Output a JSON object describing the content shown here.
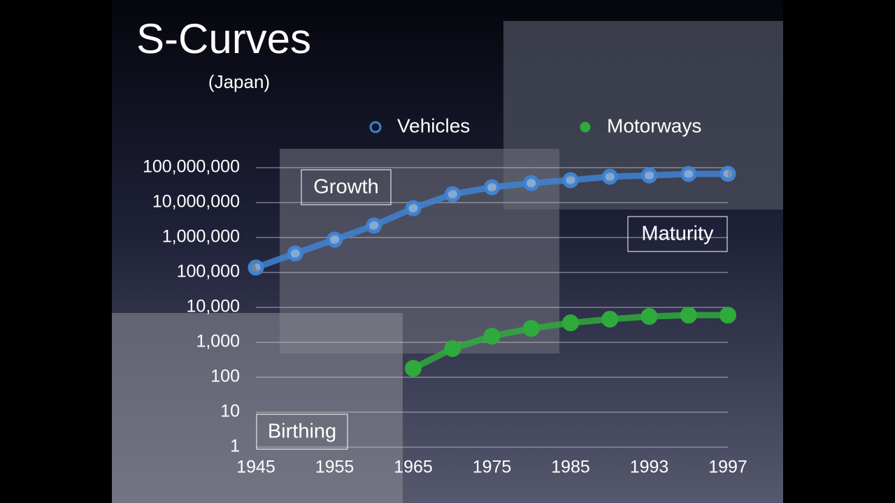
{
  "chart_data": {
    "type": "line",
    "title": "S-Curves",
    "subtitle": "(Japan)",
    "categories": [
      "1945",
      null,
      "1955",
      null,
      "1965",
      null,
      "1975",
      null,
      "1985",
      null,
      "1993",
      null,
      "1997"
    ],
    "series": [
      {
        "name": "Vehicles",
        "color": "#3f82d2",
        "marker": "open",
        "values": [
          138000,
          350000,
          870000,
          2200000,
          6900000,
          17400000,
          27500000,
          36000000,
          44000000,
          55000000,
          60000000,
          66000000,
          67000000
        ]
      },
      {
        "name": "Motorways",
        "color": "#2faa3c",
        "marker": "filled",
        "values": [
          null,
          null,
          null,
          null,
          180,
          660,
          1500,
          2500,
          3600,
          4600,
          5500,
          6000,
          6000
        ]
      }
    ],
    "log_y": true,
    "ylim": [
      1,
      100000000
    ],
    "yticks": [
      1,
      10,
      100,
      {
        "value": 1000,
        "label": "1,000"
      },
      {
        "value": 10000,
        "label": "10,000"
      },
      {
        "value": 100000,
        "label": "100,000"
      },
      {
        "value": 1000000,
        "label": "1,000,000"
      },
      {
        "value": 10000000,
        "label": "10,000,000"
      },
      {
        "value": 100000000,
        "label": "100,000,000"
      }
    ],
    "grid": true,
    "legend": "top",
    "annotations": [
      "Growth",
      "Maturity",
      "Birthing"
    ]
  }
}
